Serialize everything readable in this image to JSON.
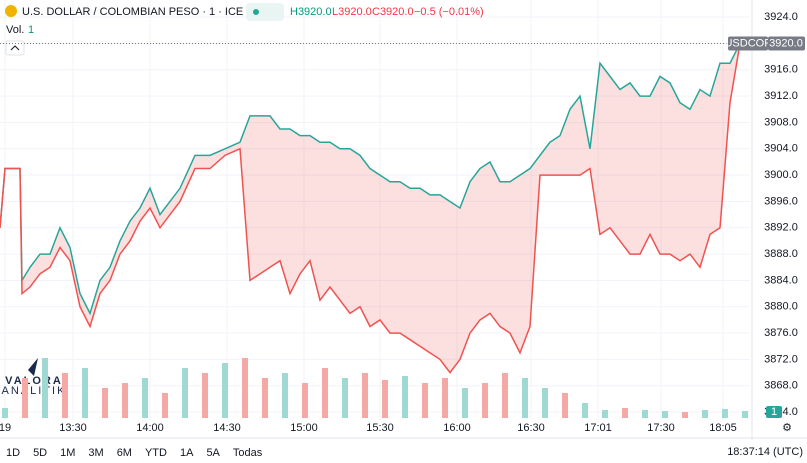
{
  "chart_data": {
    "type": "line",
    "title": "U.S. DOLLAR / COLOMBIAN PESO · 1 · ICE",
    "legend_values": [
      "H3920.0",
      "L3920.0",
      "C3920.0",
      "−0.5 (−0.01%)"
    ],
    "volume_label": "Vol.",
    "volume_value": "1",
    "symbol": "USDCOP",
    "last_price": {
      "value": 3920,
      "label": "3920.0"
    },
    "logo": [
      "VALORA",
      "ANALITIK"
    ],
    "ranges": [
      "1D",
      "5D",
      "1M",
      "3M",
      "6M",
      "YTD",
      "1A",
      "5A",
      "Todas"
    ],
    "clock": "18:37:14 (UTC)",
    "xlim": [
      0,
      375
    ],
    "xticks": [
      {
        "value": 2.5,
        "label": "19"
      },
      {
        "value": 36.5,
        "label": "13:30"
      },
      {
        "value": 75,
        "label": "14:00"
      },
      {
        "value": 113.5,
        "label": "14:30"
      },
      {
        "value": 152,
        "label": "15:00"
      },
      {
        "value": 190,
        "label": "15:30"
      },
      {
        "value": 228.5,
        "label": "16:00"
      },
      {
        "value": 265.5,
        "label": "16:30"
      },
      {
        "value": 299,
        "label": "17:01"
      },
      {
        "value": 330.5,
        "label": "17:30"
      },
      {
        "value": 361.5,
        "label": "18:05"
      }
    ],
    "ylim": [
      3862.8,
      3926.6
    ],
    "yticks": [
      {
        "value": 3924,
        "label": "3924.0"
      },
      {
        "value": 3920,
        "label": "3920.0"
      },
      {
        "value": 3916,
        "label": "3916.0"
      },
      {
        "value": 3912,
        "label": "3912.0"
      },
      {
        "value": 3908,
        "label": "3908.0"
      },
      {
        "value": 3904,
        "label": "3904.0"
      },
      {
        "value": 3900,
        "label": "3900.0"
      },
      {
        "value": 3896,
        "label": "3896.0"
      },
      {
        "value": 3892,
        "label": "3892.0"
      },
      {
        "value": 3888,
        "label": "3888.0"
      },
      {
        "value": 3884,
        "label": "3884.0"
      },
      {
        "value": 3880,
        "label": "3880.0"
      },
      {
        "value": 3876,
        "label": "3876.0"
      },
      {
        "value": 3872,
        "label": "3872.0"
      },
      {
        "value": 3868,
        "label": "3868.0"
      },
      {
        "value": 3864,
        "label": "3864.0"
      }
    ],
    "grid": true,
    "x": [
      0,
      2.5,
      10,
      11,
      15,
      20,
      25,
      30,
      35,
      40,
      45,
      50,
      55,
      60,
      65,
      70,
      75,
      80,
      85,
      90,
      97.5,
      105,
      112.5,
      120,
      125,
      130,
      135,
      140,
      145,
      150,
      155,
      160,
      165,
      170,
      175,
      180,
      185,
      190,
      195,
      200,
      205,
      210,
      215,
      220,
      225,
      230,
      235,
      240,
      245,
      250,
      255,
      260,
      265,
      270,
      275,
      280,
      285,
      290,
      295,
      300,
      305,
      310,
      315,
      320,
      325,
      330,
      335,
      340,
      345,
      350,
      355,
      360,
      365,
      370
    ],
    "series": [
      {
        "color": "#26a69a",
        "values": [
          3892,
          3901,
          3901,
          3884,
          3886,
          3888,
          3888,
          3892,
          3889,
          3882,
          3879,
          3884,
          3886,
          3890,
          3893,
          3895,
          3898,
          3894,
          3896,
          3898,
          3903,
          3903,
          3904,
          3905,
          3909,
          3909,
          3909,
          3907,
          3907,
          3906,
          3906,
          3905,
          3905,
          3904,
          3904,
          3903,
          3901,
          3900,
          3899,
          3899,
          3898,
          3898,
          3897,
          3897,
          3896,
          3895,
          3899,
          3901,
          3902,
          3899,
          3899,
          3900,
          3901,
          3903,
          3905,
          3906,
          3910,
          3912,
          3904,
          3917,
          3915,
          3913,
          3914,
          3912,
          3912,
          3915,
          3914,
          3911,
          3910,
          3913,
          3912,
          3917,
          3917,
          3920
        ]
      },
      {
        "color": "#ef5350",
        "values": [
          3892,
          3901,
          3901,
          3882,
          3883,
          3885,
          3886,
          3889,
          3887,
          3880,
          3877,
          3882,
          3884,
          3888,
          3890,
          3893,
          3895,
          3892,
          3894,
          3896,
          3901,
          3901,
          3903,
          3904,
          3884,
          3885,
          3886,
          3887,
          3882,
          3885,
          3887,
          3881,
          3883,
          3881,
          3879,
          3880,
          3877,
          3878,
          3876,
          3876,
          3875,
          3874,
          3873,
          3872,
          3870,
          3872,
          3876,
          3878,
          3879,
          3877,
          3876,
          3873,
          3877,
          3900,
          3900,
          3900,
          3900,
          3900,
          3901,
          3891,
          3892,
          3890,
          3888,
          3888,
          3891,
          3888,
          3888,
          3887,
          3888,
          3886,
          3891,
          3892,
          3911,
          3920
        ]
      }
    ],
    "volume": {
      "vlim": [
        0,
        100
      ],
      "x": [
        2.5,
        12.5,
        22.5,
        32.5,
        42.5,
        52.5,
        62.5,
        72.5,
        82.5,
        92.5,
        102.5,
        112.5,
        122.5,
        132.5,
        142.5,
        152.5,
        162.5,
        172.5,
        182.5,
        192.5,
        202.5,
        212.5,
        222.5,
        232.5,
        242.5,
        252.5,
        262.5,
        272.5,
        282.5,
        292.5,
        302.5,
        312.5,
        322.5,
        332.5,
        342.5,
        352.5,
        362.5,
        372.5
      ],
      "values": [
        10,
        40,
        60,
        45,
        50,
        30,
        35,
        40,
        25,
        50,
        45,
        55,
        60,
        40,
        45,
        35,
        50,
        40,
        45,
        38,
        42,
        35,
        40,
        30,
        35,
        45,
        40,
        30,
        25,
        15,
        8,
        10,
        8,
        7,
        6,
        8,
        9,
        7
      ],
      "colors": [
        "#9fd9d2",
        "#f4a9a7",
        "#9fd9d2",
        "#f4a9a7",
        "#9fd9d2",
        "#f4a9a7",
        "#f4a9a7",
        "#9fd9d2",
        "#f4a9a7",
        "#9fd9d2",
        "#f4a9a7",
        "#9fd9d2",
        "#f4a9a7",
        "#f4a9a7",
        "#9fd9d2",
        "#f4a9a7",
        "#f4a9a7",
        "#9fd9d2",
        "#f4a9a7",
        "#f4a9a7",
        "#9fd9d2",
        "#f4a9a7",
        "#f4a9a7",
        "#9fd9d2",
        "#f4a9a7",
        "#f4a9a7",
        "#9fd9d2",
        "#9fd9d2",
        "#f4a9a7",
        "#9fd9d2",
        "#9fd9d2",
        "#f4a9a7",
        "#9fd9d2",
        "#9fd9d2",
        "#f4a9a7",
        "#9fd9d2",
        "#9fd9d2",
        "#9fd9d2"
      ]
    }
  }
}
